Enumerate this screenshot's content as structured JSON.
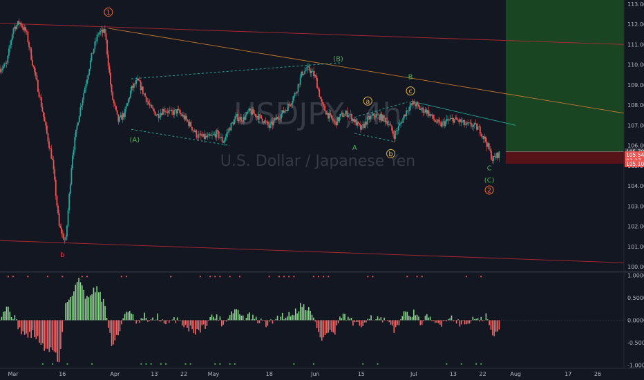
{
  "chart_data": {
    "type": "candlestick",
    "symbol": "USDJPY",
    "interval": "4h",
    "watermark_symbol": "USDJPY, 4h",
    "watermark_name": "U.S. Dollar / Japanese Yen",
    "price_ylim": [
      99.8,
      113.2
    ],
    "price_ticks": [
      "113.000",
      "112.000",
      "111.000",
      "110.000",
      "109.000",
      "108.000",
      "107.000",
      "106.000",
      "105.000",
      "104.000",
      "103.000",
      "102.000",
      "101.000",
      "100.000"
    ],
    "price_tick_values": [
      113,
      112,
      111,
      110,
      109,
      108,
      107,
      106,
      105,
      104,
      103,
      102,
      101,
      100
    ],
    "x_labels": [
      "Mar",
      "16",
      "Apr",
      "13",
      "22",
      "May",
      "18",
      "Jun",
      "15",
      "Jul",
      "13",
      "22",
      "Aug",
      "17",
      "26"
    ],
    "x_label_days": [
      0,
      15,
      31,
      43,
      52,
      61,
      78,
      92,
      106,
      122,
      134,
      143,
      153,
      169,
      178
    ],
    "x_range_days": [
      -4,
      186
    ],
    "price_path_days": [
      -4,
      -2,
      0,
      2,
      4,
      6,
      8,
      10,
      12,
      14,
      16,
      18,
      20,
      22,
      24,
      26,
      28,
      30,
      32,
      34,
      36,
      38,
      40,
      42,
      44,
      46,
      48,
      50,
      52,
      54,
      56,
      58,
      60,
      62,
      64,
      66,
      68,
      70,
      72,
      74,
      76,
      78,
      80,
      82,
      84,
      86,
      88,
      90,
      92,
      94,
      96,
      98,
      100,
      102,
      104,
      106,
      108,
      110,
      112,
      114,
      116,
      118,
      120,
      122,
      124,
      126,
      128,
      130,
      132,
      134,
      136,
      138,
      140,
      142,
      144,
      146,
      148
    ],
    "price_path_values": [
      109.8,
      110.0,
      111.8,
      112.1,
      111.6,
      110.0,
      108.5,
      106.8,
      105.2,
      102.0,
      101.2,
      105.5,
      107.5,
      109.0,
      110.5,
      111.6,
      111.6,
      108.5,
      107.2,
      107.6,
      108.8,
      109.2,
      108.5,
      107.8,
      107.5,
      107.8,
      107.6,
      107.7,
      107.4,
      107.0,
      106.5,
      106.4,
      106.4,
      106.6,
      106.2,
      106.9,
      107.4,
      107.3,
      107.7,
      107.5,
      107.3,
      106.9,
      107.3,
      107.6,
      108.0,
      108.6,
      109.6,
      109.8,
      109.4,
      108.0,
      107.5,
      107.1,
      107.5,
      107.6,
      107.2,
      106.8,
      107.3,
      107.5,
      107.4,
      107.2,
      106.5,
      107.1,
      107.8,
      108.1,
      107.8,
      107.7,
      107.3,
      107.0,
      107.2,
      107.3,
      107.2,
      107.0,
      107.0,
      106.8,
      106.2,
      105.3,
      105.6
    ],
    "last_price": "105.543",
    "price_tags": [
      {
        "text": "105.700",
        "color": "#363a45"
      },
      {
        "text": "105.543",
        "color": "#ef5350"
      },
      {
        "text": "03:27",
        "color": "#ef5350"
      },
      {
        "text": "105.100",
        "color": "#ef5350"
      }
    ],
    "price_tag_values": [
      105.7,
      105.543,
      105.25,
      105.1
    ],
    "position": {
      "entry": 105.7,
      "stop": 105.1,
      "target": 113.2,
      "start_day": 150
    },
    "trendlines": [
      {
        "name": "upper-red-channel",
        "color": "#b22833",
        "from": [
          -4,
          112.05
        ],
        "to": [
          186,
          111.0
        ]
      },
      {
        "name": "lower-red-channel",
        "color": "#b22833",
        "from": [
          -4,
          101.3
        ],
        "to": [
          186,
          100.2
        ]
      },
      {
        "name": "orange-trendline",
        "color": "#c77a2c",
        "from": [
          29,
          111.8
        ],
        "to": [
          186,
          107.6
        ]
      },
      {
        "name": "green-upper-A-B",
        "color": "#26a69a",
        "from": [
          36,
          109.3
        ],
        "to": [
          100,
          110.1
        ],
        "dashed": true
      },
      {
        "name": "green-lower-A-B",
        "color": "#26a69a",
        "from": [
          36,
          106.8
        ],
        "to": [
          66,
          106.0
        ],
        "dashed": true
      },
      {
        "name": "green-upper-a-c",
        "color": "#26a69a",
        "from": [
          104,
          107.4
        ],
        "to": [
          120,
          108.15
        ],
        "dashed": true
      },
      {
        "name": "green-lower-a-b",
        "color": "#26a69a",
        "from": [
          104,
          106.6
        ],
        "to": [
          116,
          106.2
        ],
        "dashed": true
      },
      {
        "name": "green-c-C",
        "color": "#26a69a",
        "from": [
          121,
          108.2
        ],
        "to": [
          153,
          107.0
        ],
        "dashed": false
      }
    ],
    "wave_labels": [
      {
        "text": "1",
        "circled": true,
        "color": "#ff6b3d",
        "day": 29,
        "price": 112.6
      },
      {
        "text": "b",
        "circled": false,
        "color": "#f23645",
        "day": 15,
        "price": 100.6
      },
      {
        "text": "(B)",
        "circled": false,
        "color": "#4caf50",
        "day": 99,
        "price": 110.3
      },
      {
        "text": "(A)",
        "circled": false,
        "color": "#4caf50",
        "day": 37,
        "price": 106.3
      },
      {
        "text": "a",
        "circled": true,
        "color": "#e8b64c",
        "day": 108,
        "price": 108.2
      },
      {
        "text": "A",
        "circled": false,
        "color": "#4caf50",
        "day": 104,
        "price": 105.9
      },
      {
        "text": "b",
        "circled": true,
        "color": "#e8b64c",
        "day": 115,
        "price": 105.6
      },
      {
        "text": "B",
        "circled": false,
        "color": "#4caf50",
        "day": 121,
        "price": 109.4
      },
      {
        "text": "c",
        "circled": true,
        "color": "#e8b64c",
        "day": 121,
        "price": 108.7
      },
      {
        "text": "C",
        "circled": false,
        "color": "#4caf50",
        "day": 145,
        "price": 104.9
      },
      {
        "text": "(C)",
        "circled": false,
        "color": "#4caf50",
        "day": 145,
        "price": 104.3
      },
      {
        "text": "2",
        "circled": true,
        "color": "#ff6b3d",
        "day": 145,
        "price": 103.8
      }
    ],
    "oscillator": {
      "ylim": [
        -1.05,
        1.05
      ],
      "ticks": [
        "1.0000",
        "0.5000",
        "0.0000",
        "-0.5000",
        "-1.0000"
      ],
      "tick_values": [
        1,
        0.5,
        0,
        -0.5,
        -1
      ],
      "positive_color": "#8bd48b",
      "negative_color": "#ef6b6b",
      "dot_color_top": "#ef5350",
      "dot_color_bottom": "#4caf50",
      "key_days": [
        -4,
        -2,
        0,
        2,
        4,
        6,
        8,
        10,
        12,
        14,
        16,
        18,
        20,
        22,
        24,
        26,
        28,
        30,
        32,
        34,
        36,
        38,
        40,
        42,
        44,
        46,
        48,
        50,
        52,
        54,
        56,
        58,
        60,
        62,
        64,
        66,
        68,
        70,
        72,
        74,
        76,
        78,
        80,
        82,
        84,
        86,
        88,
        90,
        92,
        94,
        96,
        98,
        100,
        102,
        104,
        106,
        108,
        110,
        112,
        114,
        116,
        118,
        120,
        122,
        124,
        126,
        128,
        130,
        132,
        134,
        136,
        138,
        140,
        142,
        144,
        146,
        148
      ],
      "key_values": [
        0.1,
        0.3,
        0.1,
        -0.2,
        -0.35,
        -0.3,
        -0.45,
        -0.7,
        -0.6,
        -0.95,
        0.35,
        0.6,
        0.95,
        0.5,
        0.65,
        0.7,
        0.3,
        -0.55,
        -0.35,
        0.2,
        0.12,
        -0.1,
        0.08,
        -0.05,
        0.1,
        -0.1,
        -0.05,
        0.05,
        -0.1,
        -0.2,
        -0.25,
        -0.15,
        0.05,
        0.1,
        -0.1,
        0.15,
        0.25,
        0.05,
        0.1,
        0.0,
        -0.05,
        -0.1,
        0.05,
        0.1,
        0.12,
        0.2,
        0.35,
        0.25,
        -0.05,
        -0.45,
        -0.25,
        -0.3,
        0.1,
        0.05,
        -0.1,
        -0.15,
        0.1,
        0.05,
        0.0,
        -0.05,
        -0.25,
        0.05,
        0.18,
        0.15,
        -0.05,
        0.05,
        -0.05,
        -0.1,
        0.05,
        0.05,
        -0.05,
        -0.1,
        0.05,
        -0.05,
        0.1,
        -0.35,
        -0.25
      ]
    }
  }
}
